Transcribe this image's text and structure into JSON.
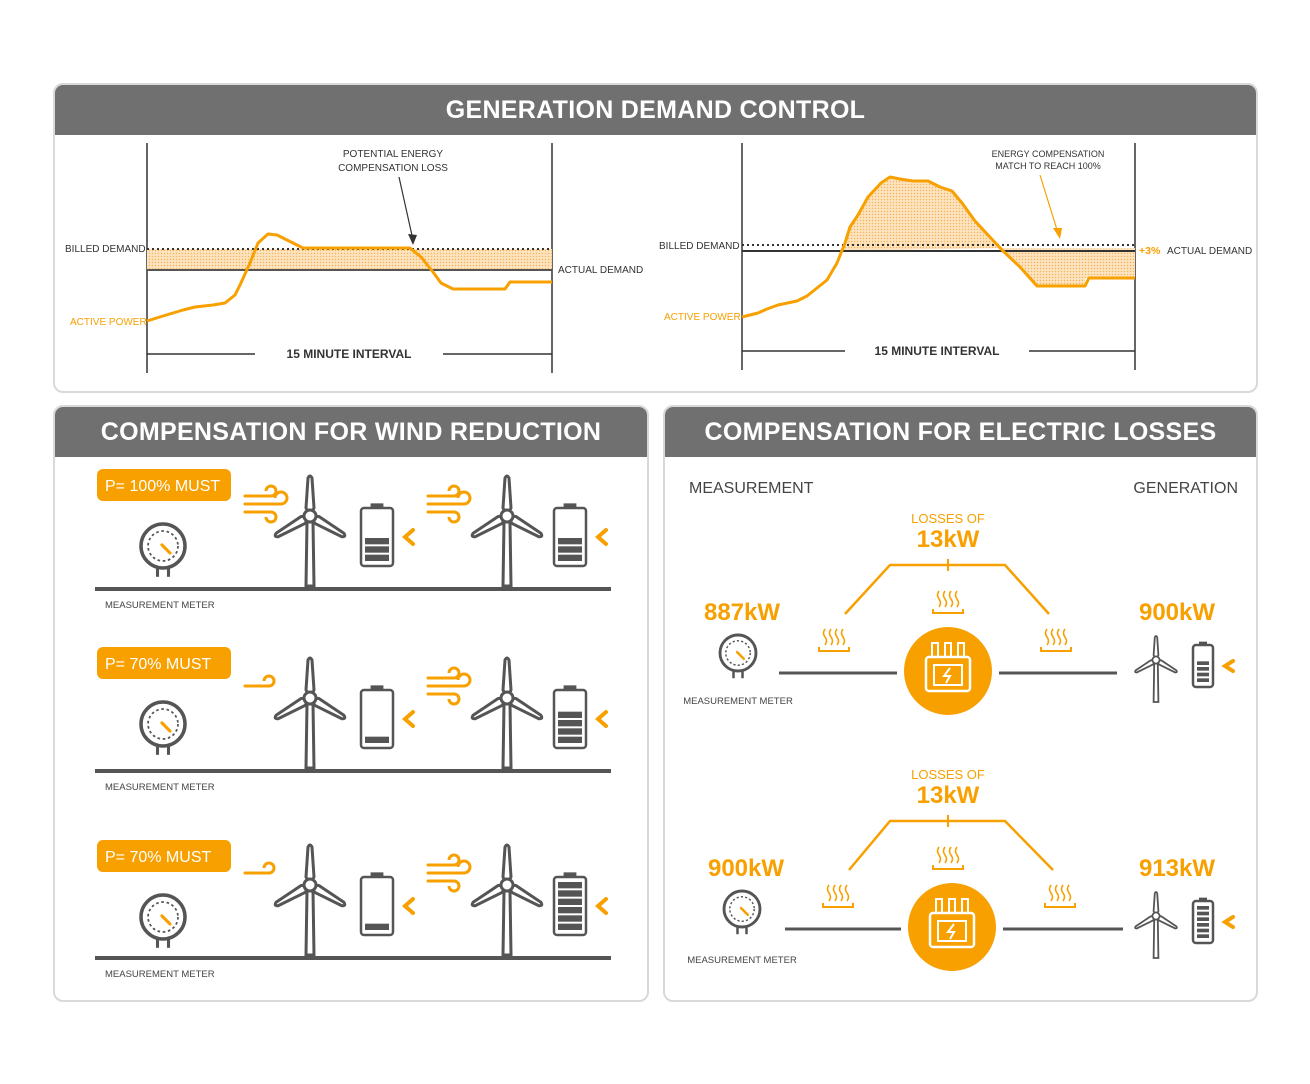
{
  "colors": {
    "accent": "#f7a000",
    "dark": "#555555",
    "header": "#707070",
    "fill": "#fcd9a6"
  },
  "generation": {
    "title": "GENERATION DEMAND CONTROL",
    "left": {
      "annotation_line1": "POTENTIAL ENERGY",
      "annotation_line2": "COMPENSATION LOSS",
      "billed_demand": "BILLED DEMAND",
      "actual_demand": "ACTUAL DEMAND",
      "active_power": "ACTIVE POWER",
      "interval": "15 MINUTE INTERVAL"
    },
    "right": {
      "annotation_line1": "ENERGY COMPENSATION",
      "annotation_line2": "MATCH TO REACH 100%",
      "billed_demand": "BILLED DEMAND",
      "plus": "+3%",
      "actual_demand": "ACTUAL DEMAND",
      "active_power": "ACTIVE POWER",
      "interval": "15 MINUTE INTERVAL"
    }
  },
  "wind": {
    "title": "COMPENSATION FOR WIND REDUCTION",
    "rows": [
      {
        "must": "P= 100% MUST",
        "meter": "MEASUREMENT METER",
        "battery1": 3,
        "battery2": 3
      },
      {
        "must": "P= 70% MUST",
        "meter": "MEASUREMENT METER",
        "battery1": 1,
        "battery2": 4
      },
      {
        "must": "P= 70% MUST",
        "meter": "MEASUREMENT METER",
        "battery1": 1,
        "battery2": 6
      }
    ]
  },
  "losses": {
    "title": "COMPENSATION FOR ELECTRIC LOSSES",
    "measurement": "MEASUREMENT",
    "generation": "GENERATION",
    "rows": [
      {
        "losses_label": "LOSSES OF",
        "losses_value": "13kW",
        "meter_value": "887kW",
        "gen_value": "900kW",
        "meter": "MEASUREMENT METER",
        "battery": 4
      },
      {
        "losses_label": "LOSSES OF",
        "losses_value": "13kW",
        "meter_value": "900kW",
        "gen_value": "913kW",
        "meter": "MEASUREMENT METER",
        "battery": 6
      }
    ]
  }
}
